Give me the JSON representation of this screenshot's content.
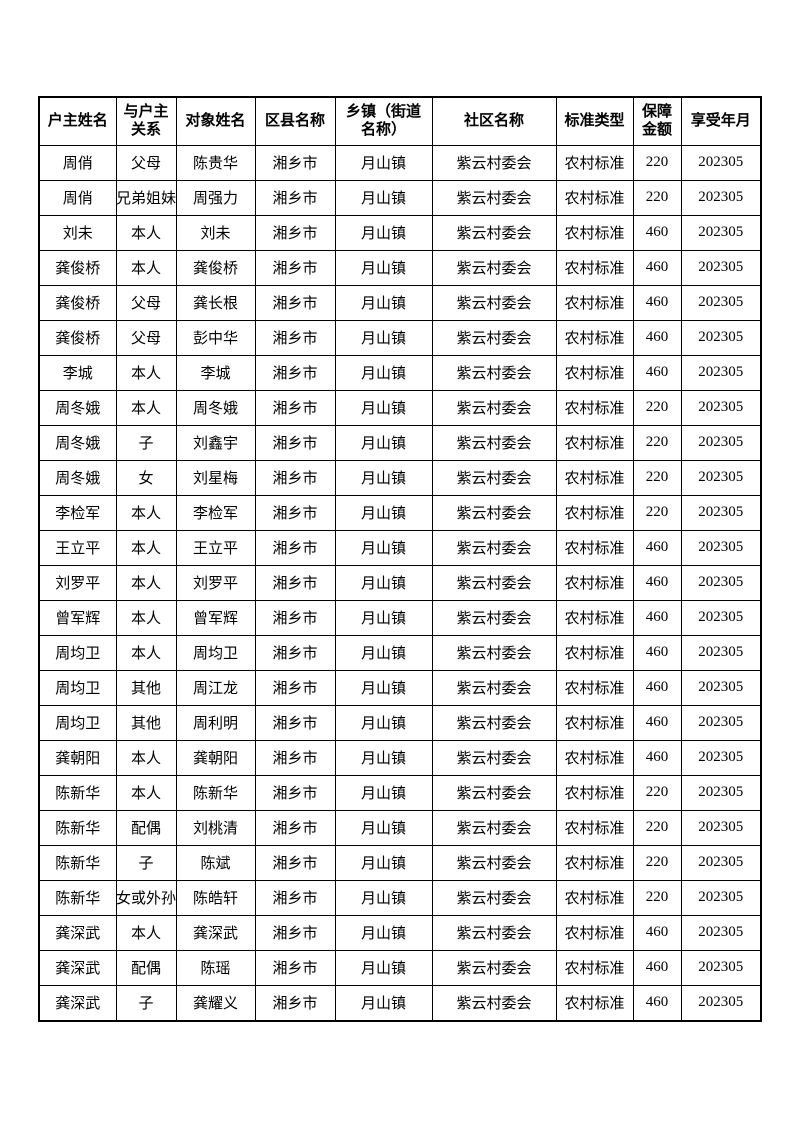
{
  "page": {
    "background_color": "#ffffff",
    "text_color": "#000000",
    "border_color": "#000000"
  },
  "table": {
    "columns": [
      {
        "key": "household_head",
        "label": "户主姓名"
      },
      {
        "key": "relationship",
        "label": "与户主\n关系"
      },
      {
        "key": "person_name",
        "label": "对象姓名"
      },
      {
        "key": "district",
        "label": "区县名称"
      },
      {
        "key": "township",
        "label": "乡镇（街道\n名称）"
      },
      {
        "key": "community",
        "label": "社区名称"
      },
      {
        "key": "standard_type",
        "label": "标准类型"
      },
      {
        "key": "amount",
        "label": "保障\n金额"
      },
      {
        "key": "benefit_month",
        "label": "享受年月"
      }
    ],
    "rows": [
      [
        "周俏",
        "父母",
        "陈贵华",
        "湘乡市",
        "月山镇",
        "紫云村委会",
        "农村标准",
        "220",
        "202305"
      ],
      [
        "周俏",
        "兄弟姐妹",
        "周强力",
        "湘乡市",
        "月山镇",
        "紫云村委会",
        "农村标准",
        "220",
        "202305"
      ],
      [
        "刘未",
        "本人",
        "刘未",
        "湘乡市",
        "月山镇",
        "紫云村委会",
        "农村标准",
        "460",
        "202305"
      ],
      [
        "龚俊桥",
        "本人",
        "龚俊桥",
        "湘乡市",
        "月山镇",
        "紫云村委会",
        "农村标准",
        "460",
        "202305"
      ],
      [
        "龚俊桥",
        "父母",
        "龚长根",
        "湘乡市",
        "月山镇",
        "紫云村委会",
        "农村标准",
        "460",
        "202305"
      ],
      [
        "龚俊桥",
        "父母",
        "彭中华",
        "湘乡市",
        "月山镇",
        "紫云村委会",
        "农村标准",
        "460",
        "202305"
      ],
      [
        "李城",
        "本人",
        "李城",
        "湘乡市",
        "月山镇",
        "紫云村委会",
        "农村标准",
        "460",
        "202305"
      ],
      [
        "周冬娥",
        "本人",
        "周冬娥",
        "湘乡市",
        "月山镇",
        "紫云村委会",
        "农村标准",
        "220",
        "202305"
      ],
      [
        "周冬娥",
        "子",
        "刘鑫宇",
        "湘乡市",
        "月山镇",
        "紫云村委会",
        "农村标准",
        "220",
        "202305"
      ],
      [
        "周冬娥",
        "女",
        "刘星梅",
        "湘乡市",
        "月山镇",
        "紫云村委会",
        "农村标准",
        "220",
        "202305"
      ],
      [
        "李检军",
        "本人",
        "李检军",
        "湘乡市",
        "月山镇",
        "紫云村委会",
        "农村标准",
        "220",
        "202305"
      ],
      [
        "王立平",
        "本人",
        "王立平",
        "湘乡市",
        "月山镇",
        "紫云村委会",
        "农村标准",
        "460",
        "202305"
      ],
      [
        "刘罗平",
        "本人",
        "刘罗平",
        "湘乡市",
        "月山镇",
        "紫云村委会",
        "农村标准",
        "460",
        "202305"
      ],
      [
        "曾军辉",
        "本人",
        "曾军辉",
        "湘乡市",
        "月山镇",
        "紫云村委会",
        "农村标准",
        "460",
        "202305"
      ],
      [
        "周均卫",
        "本人",
        "周均卫",
        "湘乡市",
        "月山镇",
        "紫云村委会",
        "农村标准",
        "460",
        "202305"
      ],
      [
        "周均卫",
        "其他",
        "周江龙",
        "湘乡市",
        "月山镇",
        "紫云村委会",
        "农村标准",
        "460",
        "202305"
      ],
      [
        "周均卫",
        "其他",
        "周利明",
        "湘乡市",
        "月山镇",
        "紫云村委会",
        "农村标准",
        "460",
        "202305"
      ],
      [
        "龚朝阳",
        "本人",
        "龚朝阳",
        "湘乡市",
        "月山镇",
        "紫云村委会",
        "农村标准",
        "460",
        "202305"
      ],
      [
        "陈新华",
        "本人",
        "陈新华",
        "湘乡市",
        "月山镇",
        "紫云村委会",
        "农村标准",
        "220",
        "202305"
      ],
      [
        "陈新华",
        "配偶",
        "刘桃清",
        "湘乡市",
        "月山镇",
        "紫云村委会",
        "农村标准",
        "220",
        "202305"
      ],
      [
        "陈新华",
        "子",
        "陈斌",
        "湘乡市",
        "月山镇",
        "紫云村委会",
        "农村标准",
        "220",
        "202305"
      ],
      [
        "陈新华",
        "孙子女或外孙子女",
        "陈皓轩",
        "湘乡市",
        "月山镇",
        "紫云村委会",
        "农村标准",
        "220",
        "202305"
      ],
      [
        "龚深武",
        "本人",
        "龚深武",
        "湘乡市",
        "月山镇",
        "紫云村委会",
        "农村标准",
        "460",
        "202305"
      ],
      [
        "龚深武",
        "配偶",
        "陈瑶",
        "湘乡市",
        "月山镇",
        "紫云村委会",
        "农村标准",
        "460",
        "202305"
      ],
      [
        "龚深武",
        "子",
        "龚耀义",
        "湘乡市",
        "月山镇",
        "紫云村委会",
        "农村标准",
        "460",
        "202305"
      ]
    ]
  }
}
